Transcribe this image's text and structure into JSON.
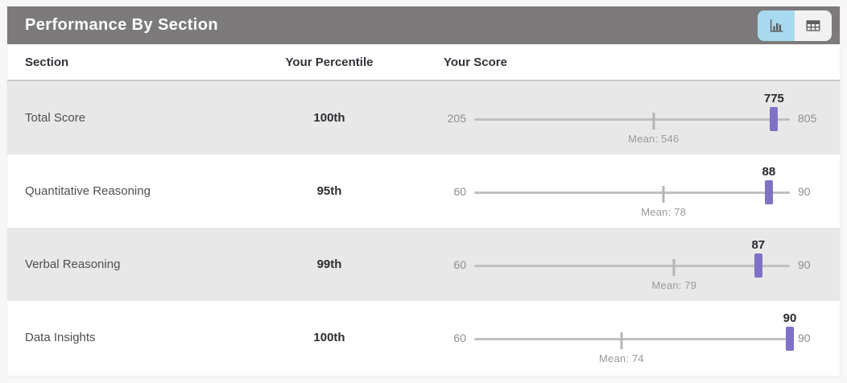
{
  "header": {
    "title": "Performance By Section",
    "view_toggle": {
      "chart_button_icon": "bar-chart-icon",
      "table_button_icon": "table-icon",
      "active_view": "chart"
    }
  },
  "colors": {
    "header_bg": "#7c7a7a",
    "accent_active": "#a9d9ee",
    "toggle_inactive": "#f1f1f1",
    "marker": "#7e72c7",
    "row_alt_bg": "#e9e8e8",
    "track": "#c1c0c0"
  },
  "table": {
    "columns": [
      "Section",
      "Your Percentile",
      "Your Score"
    ],
    "rows": [
      {
        "section": "Total Score",
        "percentile": "100th",
        "score": 775,
        "min": 205,
        "max": 805,
        "mean": 546,
        "mean_label": "Mean: 546"
      },
      {
        "section": "Quantitative Reasoning",
        "percentile": "95th",
        "score": 88,
        "min": 60,
        "max": 90,
        "mean": 78,
        "mean_label": "Mean: 78"
      },
      {
        "section": "Verbal Reasoning",
        "percentile": "99th",
        "score": 87,
        "min": 60,
        "max": 90,
        "mean": 79,
        "mean_label": "Mean: 79"
      },
      {
        "section": "Data Insights",
        "percentile": "100th",
        "score": 90,
        "min": 60,
        "max": 90,
        "mean": 74,
        "mean_label": "Mean: 74"
      }
    ]
  }
}
